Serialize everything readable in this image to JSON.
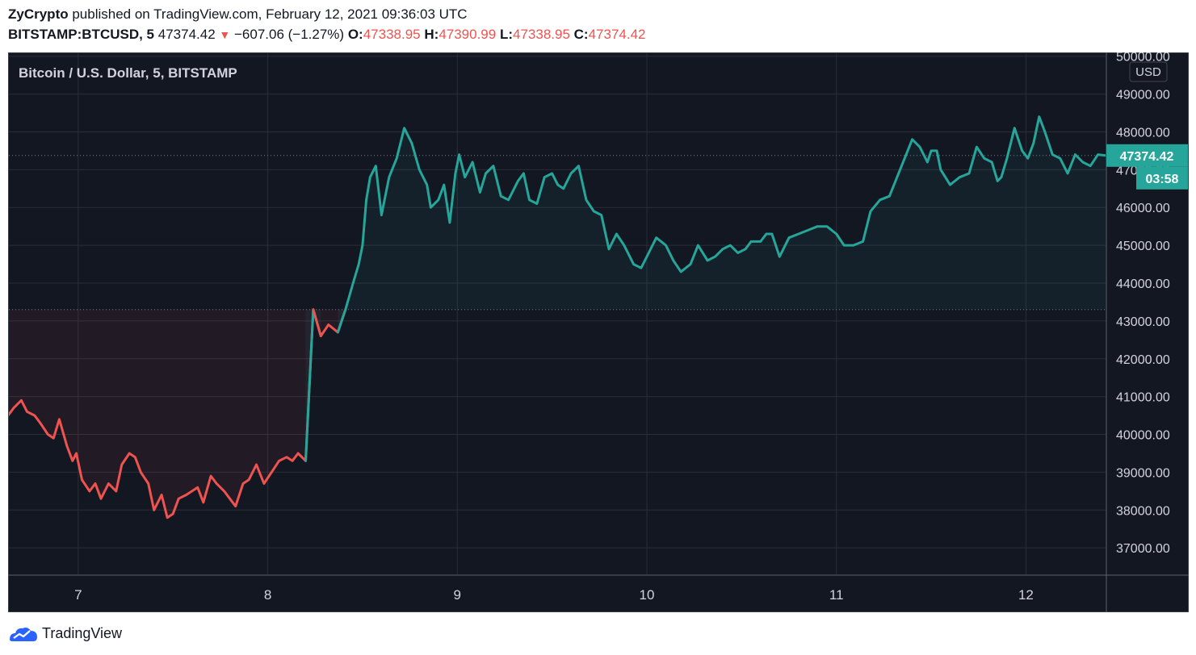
{
  "header": {
    "publisher": "ZyCrypto",
    "published_text": " published on TradingView.com, February 12, 2021 09:36:03 UTC",
    "symbol": "BITSTAMP:BTCUSD, 5",
    "last": "47374.42",
    "change": "−607.06 (−1.27%)",
    "open_label": "O:",
    "open": "47338.95",
    "high_label": "H:",
    "high": "47390.99",
    "low_label": "L:",
    "low": "47338.95",
    "close_label": "C:",
    "close": "47374.42"
  },
  "footer": {
    "brand": "TradingView",
    "icon": "tradingview-logo-icon"
  },
  "colors": {
    "background": "#131722",
    "grid": "#2a2e39",
    "up": "#26a69a",
    "down": "#ef5350",
    "text": "#d1d4dc"
  },
  "chart_data": {
    "type": "line",
    "title": "Bitcoin / U.S. Dollar, 5, BITSTAMP",
    "currency": "USD",
    "y_tick_labels": [
      "50000.00",
      "49000.00",
      "48000.00",
      "47000.00",
      "46000.00",
      "45000.00",
      "44000.00",
      "43000.00",
      "42000.00",
      "41000.00",
      "40000.00",
      "39000.00",
      "38000.00",
      "37000.00"
    ],
    "x_tick_labels": [
      "7",
      "8",
      "9",
      "10",
      "11",
      "12"
    ],
    "x_ticks": [
      7,
      8,
      9,
      10,
      11,
      12
    ],
    "xlim": [
      6.63,
      12.42
    ],
    "ylim": [
      36300,
      50100
    ],
    "baseline": 43300,
    "last_price_label": "47374.42",
    "countdown_label": "03:58",
    "grid": true,
    "series": [
      {
        "x": [
          6.63,
          6.66,
          6.7,
          6.73,
          6.77,
          6.8,
          6.84,
          6.87,
          6.9,
          6.94,
          6.97,
          6.99,
          7.02,
          7.06,
          7.09,
          7.12,
          7.16,
          7.2,
          7.23,
          7.27,
          7.3,
          7.33,
          7.37,
          7.4,
          7.44,
          7.47,
          7.5,
          7.53,
          7.57,
          7.6,
          7.63,
          7.66,
          7.7,
          7.73,
          7.77,
          7.8,
          7.83,
          7.87,
          7.9,
          7.94,
          7.98,
          8.02,
          8.06,
          8.1,
          8.13,
          8.16,
          8.2,
          8.24,
          8.28,
          8.32,
          8.37,
          8.41,
          8.45,
          8.48,
          8.5,
          8.52,
          8.54,
          8.57,
          8.6,
          8.64,
          8.68,
          8.72,
          8.76,
          8.8,
          8.84,
          8.86,
          8.9,
          8.93,
          8.96,
          8.99,
          9.01,
          9.04,
          9.08,
          9.12,
          9.15,
          9.19,
          9.23,
          9.27,
          9.29,
          9.32,
          9.35,
          9.38,
          9.42,
          9.46,
          9.5,
          9.53,
          9.56,
          9.6,
          9.64,
          9.68,
          9.72,
          9.76,
          9.8,
          9.84,
          9.88,
          9.93,
          9.97,
          10.01,
          10.05,
          10.1,
          10.14,
          10.18,
          10.23,
          10.27,
          10.32,
          10.36,
          10.4,
          10.44,
          10.48,
          10.52,
          10.55,
          10.58,
          10.6,
          10.63,
          10.66,
          10.7,
          10.75,
          10.8,
          10.85,
          10.9,
          10.95,
          11.0,
          11.04,
          11.09,
          11.14,
          11.18,
          11.23,
          11.28,
          11.32,
          11.36,
          11.4,
          11.44,
          11.48,
          11.5,
          11.53,
          11.55,
          11.6,
          11.65,
          11.7,
          11.74,
          11.78,
          11.82,
          11.85,
          11.87,
          11.9,
          11.94,
          11.98,
          12.01,
          12.04,
          12.07,
          12.1,
          12.14,
          12.18,
          12.22,
          12.26,
          12.3,
          12.34,
          12.38,
          12.42
        ],
        "values": [
          40500,
          40700,
          40900,
          40600,
          40500,
          40300,
          40000,
          39900,
          40400,
          39700,
          39300,
          39500,
          38800,
          38500,
          38700,
          38300,
          38700,
          38500,
          39200,
          39500,
          39400,
          39000,
          38700,
          38000,
          38400,
          37800,
          37900,
          38300,
          38400,
          38500,
          38600,
          38200,
          38900,
          38700,
          38500,
          38300,
          38100,
          38700,
          38800,
          39200,
          38700,
          39000,
          39300,
          39400,
          39300,
          39500,
          39300,
          43300,
          42600,
          42900,
          42700,
          43300,
          44000,
          44500,
          45000,
          46200,
          46800,
          47100,
          45800,
          46800,
          47300,
          48100,
          47700,
          47000,
          46600,
          46000,
          46200,
          46600,
          45600,
          46900,
          47400,
          46800,
          47200,
          46400,
          46900,
          47100,
          46300,
          46200,
          46400,
          46700,
          46900,
          46200,
          46100,
          46800,
          46900,
          46600,
          46500,
          46900,
          47100,
          46200,
          45900,
          45800,
          44900,
          45300,
          45000,
          44500,
          44400,
          44800,
          45200,
          45000,
          44600,
          44300,
          44500,
          45000,
          44600,
          44700,
          44900,
          45000,
          44800,
          44900,
          45100,
          45100,
          45100,
          45300,
          45300,
          44700,
          45200,
          45300,
          45400,
          45500,
          45500,
          45300,
          45000,
          45000,
          45100,
          45900,
          46200,
          46300,
          46800,
          47300,
          47800,
          47600,
          47200,
          47500,
          47500,
          47000,
          46600,
          46800,
          46900,
          47600,
          47300,
          47200,
          46700,
          46800,
          47300,
          48100,
          47500,
          47300,
          47700,
          48400,
          48000,
          47400,
          47300,
          46900,
          47400,
          47200,
          47100,
          47400,
          47374.42
        ]
      }
    ]
  }
}
